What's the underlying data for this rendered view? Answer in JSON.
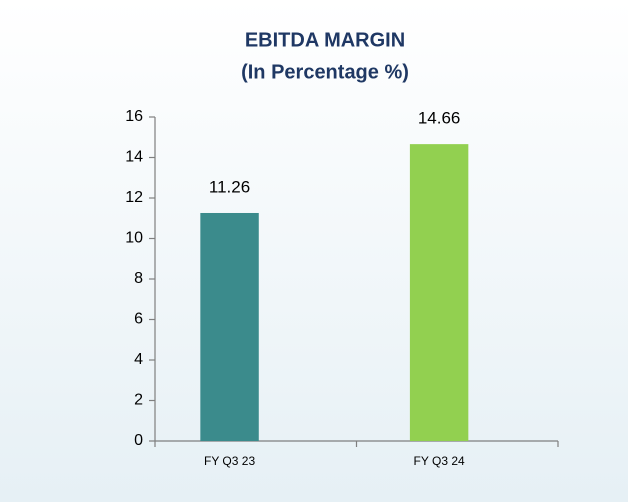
{
  "chart_data": {
    "type": "bar",
    "title": "EBITDA MARGIN",
    "subtitle": "(In Percentage %)",
    "categories": [
      "FY Q3 23",
      "FY Q3 24"
    ],
    "values": [
      11.26,
      14.66
    ],
    "colors": [
      "#3b8b8c",
      "#92d050"
    ],
    "ylim": [
      0,
      16
    ],
    "yticks": [
      0,
      2,
      4,
      6,
      8,
      10,
      12,
      14,
      16
    ],
    "grid": false
  }
}
